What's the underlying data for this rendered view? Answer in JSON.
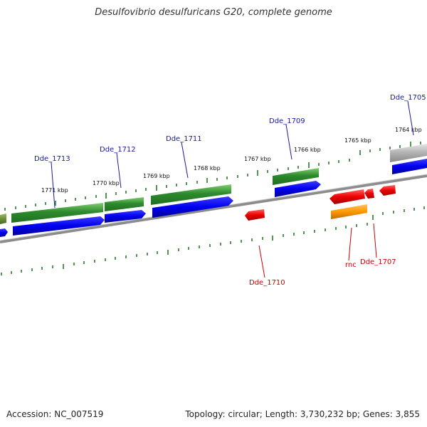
{
  "title": "Desulfovibrio desulfuricans G20, complete genome",
  "footer": {
    "accession": "Accession: NC_007519",
    "summary": "Topology: circular; Length: 3,730,232 bp; Genes: 3,855"
  },
  "scale_labels": [
    "1771 kbp",
    "1770 kbp",
    "1769 kbp",
    "1768 kbp",
    "1767 kbp",
    "1766 kbp",
    "1765 kbp",
    "1764 kbp"
  ],
  "gene_labels": {
    "top": [
      "Dde_1713",
      "Dde_1712",
      "Dde_1711",
      "Dde_1709",
      "Dde_1705"
    ],
    "bottom": [
      "Dde_1710",
      "rnc",
      "Dde_1707"
    ]
  },
  "colors": {
    "cds": "#2d8a2d",
    "protein": "#0000ee",
    "rna_gene": "#ee0000",
    "rnc_cds": "#ff9900",
    "partial_gene": "#b0b0b0",
    "edge_gene": "#6a8f3a",
    "backbone": "#8c8c8c",
    "ticks": "#2a7a2a",
    "top_label": "#1a1aa0",
    "bottom_label": "#cc0000"
  }
}
